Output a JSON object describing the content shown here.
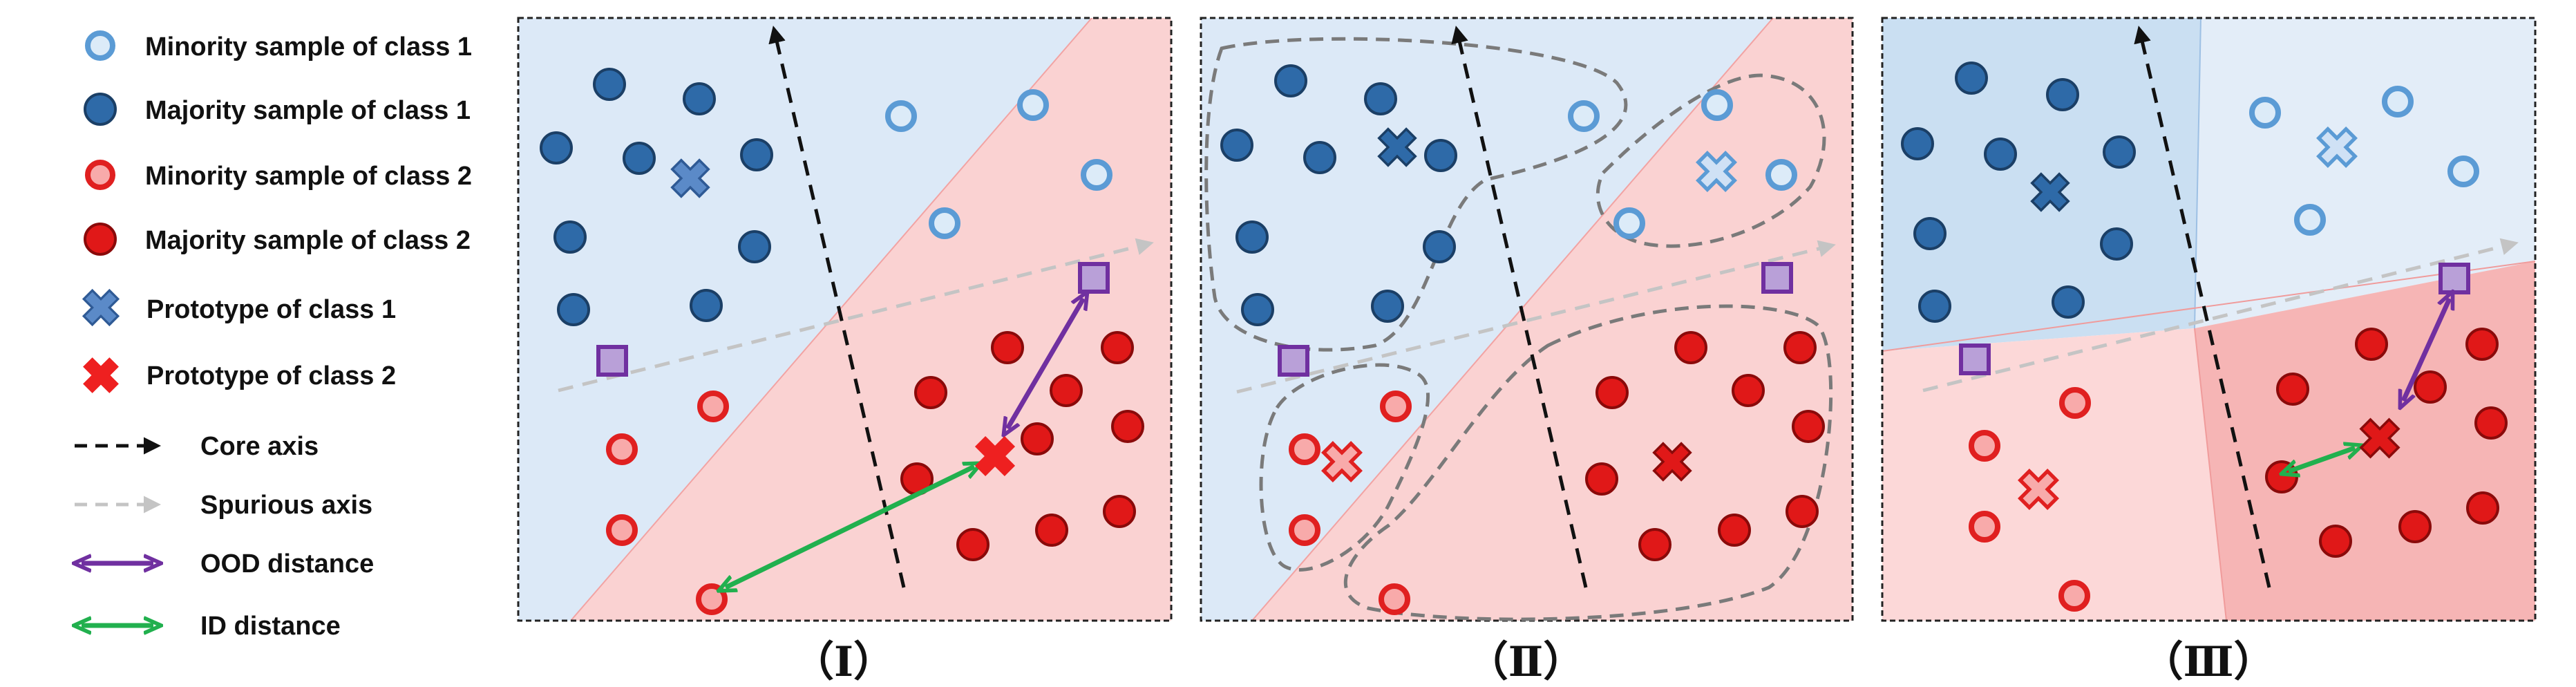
{
  "legend": {
    "minority_class1": "Minority sample of class 1",
    "majority_class1": "Majority sample of class 1",
    "minority_class2": "Minority sample of class 2",
    "majority_class2": "Majority sample of class 2",
    "prototype_class1": "Prototype of class 1",
    "prototype_class2": "Prototype of class 2",
    "core_axis": "Core axis",
    "spurious_axis": "Spurious axis",
    "ood_distance": "OOD distance",
    "id_distance": "ID distance"
  },
  "panels": [
    {
      "label": "（Ⅰ）"
    },
    {
      "label": "（Ⅱ）"
    },
    {
      "label": "（Ⅲ）"
    }
  ],
  "colors": {
    "class1_region": "#dce9f7",
    "class2_region": "#fad2d2",
    "majority_class1": "#2e6aa8",
    "minority_class1_fill": "#dcebf8",
    "minority_class1_stroke": "#5b9bd5",
    "majority_class2": "#e01818",
    "minority_class2_fill": "#f8aaaa",
    "minority_class2_stroke": "#e02020",
    "prototype_class1": "#5b8ac8",
    "prototype_class2": "#ee2020",
    "ood_arrow": "#7030a0",
    "id_arrow": "#21b04e",
    "ood_sample": "#b9a0d8",
    "core_axis": "#111111",
    "spurious_axis": "#c4c4c4",
    "cluster_outline": "#7a7a7a"
  }
}
